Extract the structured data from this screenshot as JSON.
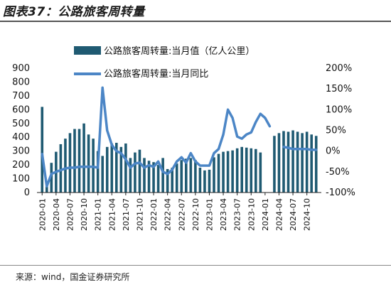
{
  "header": {
    "title": "图表37：公路旅客周转量"
  },
  "footer": {
    "source": "来源：wind，国金证券研究所"
  },
  "chart_data": {
    "type": "bar",
    "title": "",
    "legend_position": "top",
    "colors": {
      "bar": "#1f5a72",
      "line": "#4c86c6"
    },
    "series": [
      {
        "name": "公路旅客周转量:当月值（亿人公里）",
        "type": "bar",
        "axis": "left"
      },
      {
        "name": "公路旅客周转量:当月同比",
        "type": "line",
        "axis": "right"
      }
    ],
    "categories": [
      "2020-01",
      "2020-02",
      "2020-03",
      "2020-04",
      "2020-05",
      "2020-06",
      "2020-07",
      "2020-08",
      "2020-09",
      "2020-10",
      "2020-11",
      "2020-12",
      "2021-01",
      "2021-02",
      "2021-03",
      "2021-04",
      "2021-05",
      "2021-06",
      "2021-07",
      "2021-08",
      "2021-09",
      "2021-10",
      "2021-11",
      "2021-12",
      "2022-01",
      "2022-02",
      "2022-03",
      "2022-04",
      "2022-05",
      "2022-06",
      "2022-07",
      "2022-08",
      "2022-09",
      "2022-10",
      "2022-11",
      "2022-12",
      "2023-01",
      "2023-02",
      "2023-03",
      "2023-04",
      "2023-05",
      "2023-06",
      "2023-07",
      "2023-08",
      "2023-09",
      "2023-10",
      "2023-11",
      "2023-12",
      "2024-01",
      "2024-02",
      "2024-03",
      "2024-04",
      "2024-05",
      "2024-06",
      "2024-07",
      "2024-08",
      "2024-09",
      "2024-10",
      "2024-11",
      "2024-12"
    ],
    "x_tick_labels": [
      "2020-01",
      "2020-04",
      "2020-07",
      "2020-10",
      "2021-01",
      "2021-04",
      "2021-07",
      "2021-10",
      "2022-01",
      "2022-04",
      "2022-07",
      "2022-10",
      "2023-01",
      "2023-04",
      "2023-07",
      "2023-10",
      "2024-01",
      "2024-04",
      "2024-07",
      "2024-10"
    ],
    "bar_values": [
      620,
      60,
      215,
      295,
      350,
      390,
      430,
      460,
      460,
      500,
      420,
      390,
      300,
      265,
      330,
      355,
      360,
      330,
      355,
      250,
      290,
      310,
      250,
      230,
      220,
      200,
      250,
      170,
      180,
      210,
      235,
      245,
      250,
      235,
      180,
      160,
      165,
      255,
      280,
      295,
      300,
      305,
      320,
      330,
      325,
      320,
      315,
      290,
      null,
      null,
      410,
      430,
      445,
      440,
      450,
      440,
      430,
      440,
      420,
      410
    ],
    "line_values": [
      -7,
      -85,
      -55,
      -50,
      -46,
      -42,
      -40,
      -40,
      -38,
      -38,
      -38,
      -38,
      -40,
      153,
      50,
      15,
      0,
      -5,
      -20,
      -40,
      -30,
      -28,
      -40,
      -34,
      -38,
      -25,
      -50,
      -55,
      -45,
      -25,
      -15,
      -28,
      -5,
      -25,
      -35,
      -35,
      -35,
      -5,
      5,
      40,
      100,
      80,
      35,
      30,
      40,
      45,
      70,
      90,
      80,
      60,
      null,
      null,
      10,
      8,
      5,
      5,
      5,
      5,
      3,
      3
    ],
    "left_axis": {
      "min": 0,
      "max": 900,
      "ticks": [
        0,
        100,
        200,
        300,
        400,
        500,
        600,
        700,
        800,
        900
      ]
    },
    "right_axis": {
      "min": -100,
      "max": 200,
      "ticks": [
        "-100%",
        "-50%",
        "0%",
        "50%",
        "100%",
        "150%",
        "200%"
      ]
    }
  }
}
